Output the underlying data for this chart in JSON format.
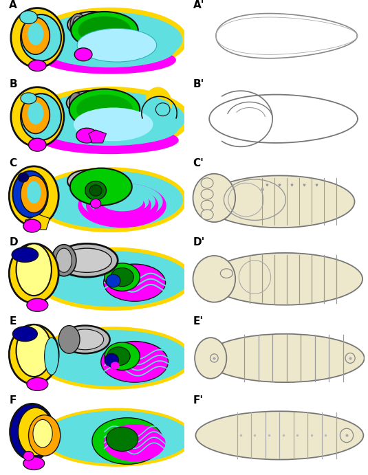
{
  "title": "",
  "background": "#ffffff",
  "panel_labels_left": [
    "A",
    "B",
    "C",
    "D",
    "E",
    "F"
  ],
  "panel_labels_right": [
    "A'",
    "B'",
    "C'",
    "D'",
    "E'",
    "F'"
  ],
  "colors": {
    "yellow": "#FFD700",
    "lt_yellow": "#FFFF88",
    "cyan_light": "#87CEEB",
    "cyan_main": "#5FDFDF",
    "cyan_dark": "#30B0B0",
    "green_bright": "#00CC00",
    "green_dark": "#007700",
    "magenta": "#FF00FF",
    "magenta_dark": "#CC00CC",
    "orange": "#FFA500",
    "orange_lt": "#FFCC44",
    "gray": "#BBBBBB",
    "gray_dark": "#888888",
    "blue": "#0033CC",
    "dark_blue": "#000099",
    "navy": "#000066",
    "outline": "#111111",
    "beige": "#EDE8CC",
    "beige_dark": "#C8C0A0",
    "white": "#FFFFFF",
    "lt_cyan": "#AAEEFF"
  }
}
